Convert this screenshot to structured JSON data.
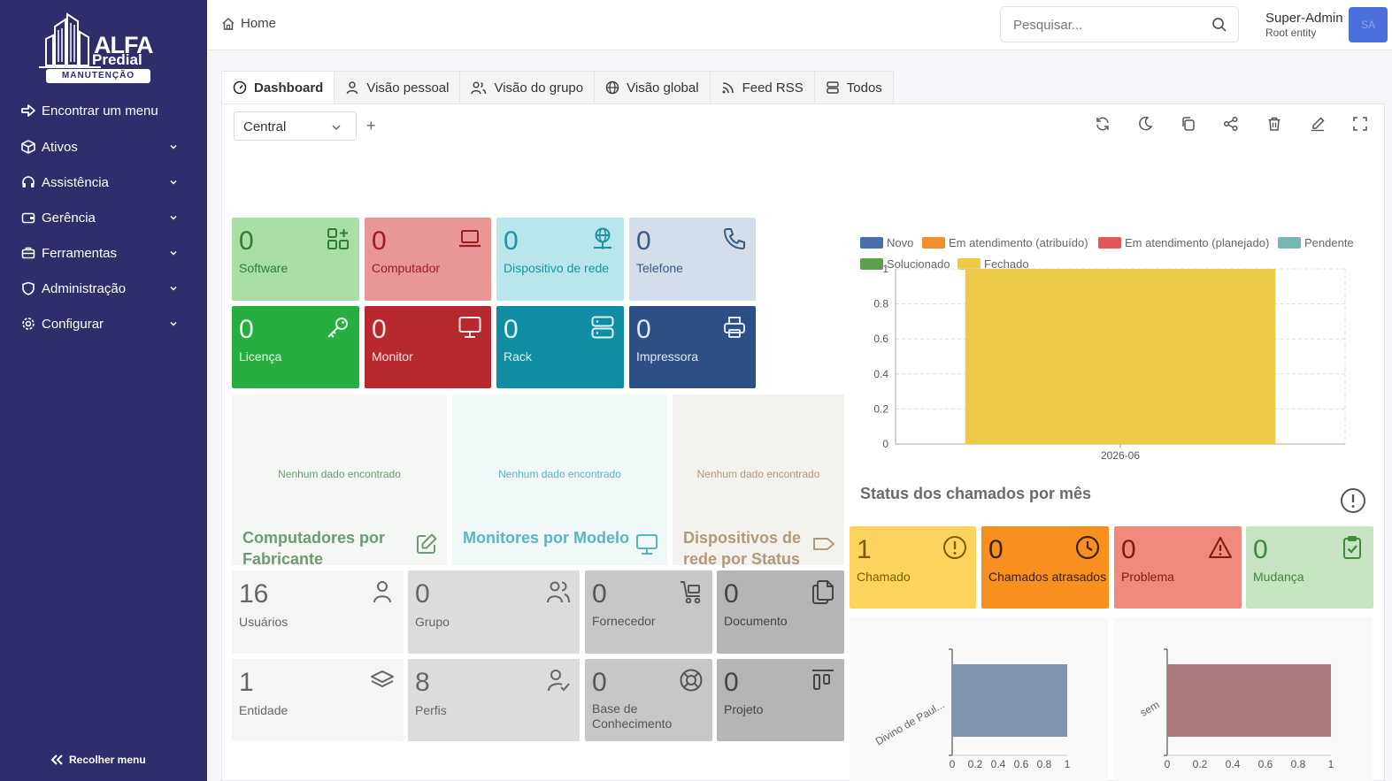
{
  "sidebar": {
    "logo": {
      "line1": "ALFA",
      "line2": "Predial",
      "tag": "MANUTENÇÃO"
    },
    "find_menu": "Encontrar um menu",
    "items": [
      {
        "label": "Ativos",
        "icon": "cube-icon"
      },
      {
        "label": "Assistência",
        "icon": "headset-icon"
      },
      {
        "label": "Gerência",
        "icon": "wallet-icon"
      },
      {
        "label": "Ferramentas",
        "icon": "briefcase-icon"
      },
      {
        "label": "Administração",
        "icon": "shield-icon"
      },
      {
        "label": "Configurar",
        "icon": "gear-icon"
      }
    ],
    "collapse_label": "Recolher menu"
  },
  "topbar": {
    "home_label": "Home",
    "search_placeholder": "Pesquisar...",
    "user_name": "Super-Admin",
    "user_entity": "Root entity",
    "avatar_initials": "SA"
  },
  "tabs": [
    {
      "label": "Dashboard",
      "active": true,
      "icon": "gauge-icon"
    },
    {
      "label": "Visão pessoal",
      "icon": "user-icon"
    },
    {
      "label": "Visão do grupo",
      "icon": "users-icon"
    },
    {
      "label": "Visão global",
      "icon": "globe-icon"
    },
    {
      "label": "Feed RSS",
      "icon": "rss-icon"
    },
    {
      "label": "Todos",
      "icon": "stack-icon"
    }
  ],
  "dashboard": {
    "selected": "Central",
    "add": "+"
  },
  "asset_cards": [
    {
      "value": "0",
      "label": "Software",
      "bg": "#a9dfa6",
      "fg": "#2e7d32"
    },
    {
      "value": "0",
      "label": "Computador",
      "bg": "#e99697",
      "fg": "#9a1c1f"
    },
    {
      "value": "0",
      "label": "Dispositivo de rede",
      "bg": "#b8e6ea",
      "fg": "#1c93a3"
    },
    {
      "value": "0",
      "label": "Telefone",
      "bg": "#d3deea",
      "fg": "#3a5a86"
    },
    {
      "value": "0",
      "label": "Licença",
      "bg": "#26ae3e",
      "fg": "#e8fbe9"
    },
    {
      "value": "0",
      "label": "Monitor",
      "bg": "#b8282f",
      "fg": "#ffe6e6"
    },
    {
      "value": "0",
      "label": "Rack",
      "bg": "#108da3",
      "fg": "#dff7fa"
    },
    {
      "value": "0",
      "label": "Impressora",
      "bg": "#2d4f86",
      "fg": "#dfe9f7"
    }
  ],
  "nodata_panels": [
    {
      "text": "Nenhum dado encontrado",
      "title": "Computadores por Fabricante",
      "bg": "#f4f7f4",
      "fg": "#6d9a74"
    },
    {
      "text": "Nenhum dado encontrado",
      "title": "Monitores por Modelo",
      "bg": "#f0f8f8",
      "fg": "#5ab5bd"
    },
    {
      "text": "Nenhum dado encontrado",
      "title": "Dispositivos de rede por Status",
      "bg": "#f3f2ef",
      "fg": "#b1997a"
    }
  ],
  "admin_cards": [
    {
      "value": "16",
      "label": "Usuários",
      "bg": "#f5f5f5",
      "fg": "#666"
    },
    {
      "value": "0",
      "label": "Grupo",
      "bg": "#dcdcdc",
      "fg": "#666"
    },
    {
      "value": "0",
      "label": "Fornecedor",
      "bg": "#c7c7c7",
      "fg": "#555"
    },
    {
      "value": "0",
      "label": "Documento",
      "bg": "#b5b5b5",
      "fg": "#444"
    },
    {
      "value": "1",
      "label": "Entidade",
      "bg": "#f5f5f5",
      "fg": "#666"
    },
    {
      "value": "8",
      "label": "Perfis",
      "bg": "#dcdcdc",
      "fg": "#666"
    },
    {
      "value": "0",
      "label": "Base de Conhecimento",
      "bg": "#c7c7c7",
      "fg": "#555"
    },
    {
      "value": "0",
      "label": "Projeto",
      "bg": "#b5b5b5",
      "fg": "#444"
    }
  ],
  "ticket_cards": [
    {
      "value": "1",
      "label": "Chamado",
      "bg": "#fcd45d",
      "fg": "#7a5a00"
    },
    {
      "value": "0",
      "label": "Chamados atrasados",
      "bg": "#f7901e",
      "fg": "#3f2000"
    },
    {
      "value": "0",
      "label": "Problema",
      "bg": "#f08a7c",
      "fg": "#7c1a12"
    },
    {
      "value": "0",
      "label": "Mudança",
      "bg": "#c6e3c2",
      "fg": "#3d8a3a"
    }
  ],
  "chart_data": [
    {
      "type": "bar",
      "title": "Status dos chamados por mês",
      "categories": [
        "2026-06"
      ],
      "series": [
        {
          "name": "Novo",
          "color": "#4a6fa5",
          "values": [
            0
          ]
        },
        {
          "name": "Em atendimento (atribuído)",
          "color": "#f28e2b",
          "values": [
            0
          ]
        },
        {
          "name": "Em atendimento (planejado)",
          "color": "#e15759",
          "values": [
            0
          ]
        },
        {
          "name": "Pendente",
          "color": "#76b7b2",
          "values": [
            0
          ]
        },
        {
          "name": "Solucionado",
          "color": "#59a14f",
          "values": [
            0
          ]
        },
        {
          "name": "Fechado",
          "color": "#edc948",
          "values": [
            1
          ]
        }
      ],
      "ylim": [
        0,
        1
      ],
      "yticks": [
        "0",
        "0.2",
        "0.4",
        "0.6",
        "0.8",
        "1"
      ],
      "stacked": true,
      "grid": true,
      "legend": "top"
    },
    {
      "type": "bar",
      "orientation": "horizontal",
      "categories": [
        "Divino de Paul..."
      ],
      "values": [
        1
      ],
      "color": "#7f95b0",
      "xlim": [
        0,
        1
      ],
      "xticks": [
        "0",
        "0.2",
        "0.4",
        "0.6",
        "0.8",
        "1"
      ]
    },
    {
      "type": "bar",
      "orientation": "horizontal",
      "categories": [
        "sem"
      ],
      "values": [
        1
      ],
      "color": "#ab7a7c",
      "xlim": [
        0,
        1
      ],
      "xticks": [
        "0",
        "0.2",
        "0.4",
        "0.6",
        "0.8",
        "1"
      ]
    }
  ]
}
